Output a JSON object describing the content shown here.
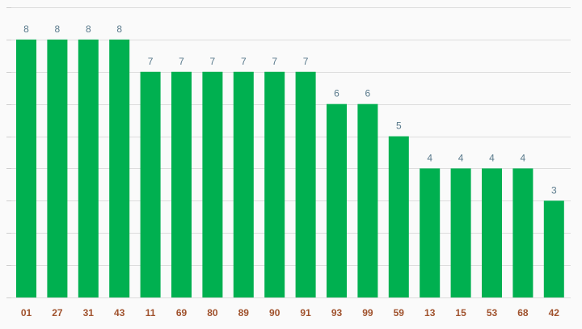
{
  "chart_data": {
    "type": "bar",
    "title": "",
    "xlabel": "",
    "ylabel": "",
    "categories": [
      "01",
      "27",
      "31",
      "43",
      "11",
      "69",
      "80",
      "89",
      "90",
      "91",
      "93",
      "99",
      "59",
      "13",
      "15",
      "53",
      "68",
      "42"
    ],
    "values": [
      8,
      8,
      8,
      8,
      7,
      7,
      7,
      7,
      7,
      7,
      6,
      6,
      5,
      4,
      4,
      4,
      4,
      3
    ],
    "ylim": [
      0,
      9
    ],
    "grid": true,
    "legend": "none",
    "data_labels": true,
    "colors": {
      "bar": "#00b050",
      "value_label": "#5a7a8c",
      "category_label": "#a0522d",
      "grid": "#dddddd",
      "background": "#fafafa"
    }
  }
}
